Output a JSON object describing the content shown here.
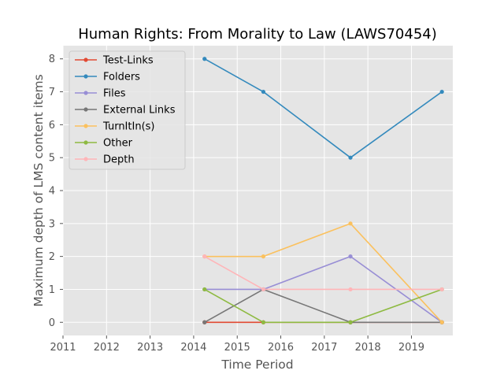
{
  "chart_data": {
    "type": "line",
    "title": "Human Rights: From Morality to Law (LAWS70454)",
    "xlabel": "Time Period",
    "ylabel": "Maximum depth of LMS content items",
    "xlim": [
      2011,
      2019.95
    ],
    "ylim": [
      -0.4,
      8.4
    ],
    "x_ticks": [
      2011,
      2012,
      2013,
      2014,
      2015,
      2016,
      2017,
      2018,
      2019
    ],
    "y_ticks": [
      0,
      1,
      2,
      3,
      4,
      5,
      6,
      7,
      8
    ],
    "grid": true,
    "legend_position": "top-left",
    "x": [
      2014.25,
      2015.6,
      2017.6,
      2019.7
    ],
    "series": [
      {
        "name": "Test-Links",
        "color": "#e24a33",
        "values": [
          0,
          0,
          0,
          0
        ]
      },
      {
        "name": "Folders",
        "color": "#348abd",
        "values": [
          8,
          7,
          5,
          7
        ]
      },
      {
        "name": "Files",
        "color": "#988ed5",
        "values": [
          1,
          1,
          2,
          0
        ]
      },
      {
        "name": "External Links",
        "color": "#777777",
        "values": [
          0,
          1,
          0,
          0
        ]
      },
      {
        "name": "TurnItIn(s)",
        "color": "#fbc15e",
        "values": [
          2,
          2,
          3,
          0
        ]
      },
      {
        "name": "Other",
        "color": "#8eba42",
        "values": [
          1,
          0,
          0,
          1
        ]
      },
      {
        "name": "Depth",
        "color": "#ffb5b8",
        "values": [
          2,
          1,
          1,
          1
        ]
      }
    ]
  }
}
